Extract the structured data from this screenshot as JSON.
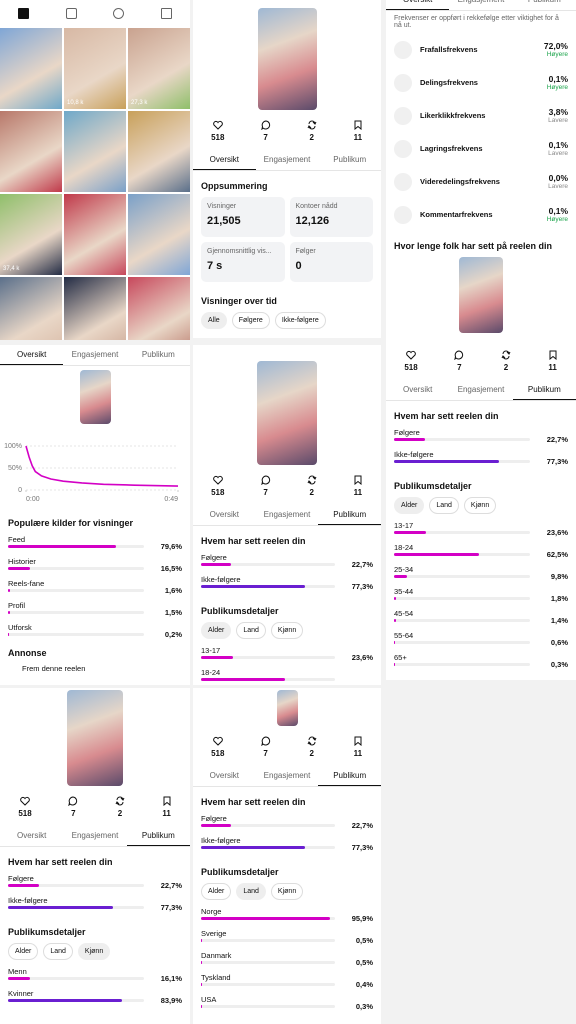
{
  "grid_views": [
    null,
    "10,8 k",
    "27,3 k",
    null,
    null,
    null,
    "37,4 k",
    null,
    null,
    null,
    null,
    null
  ],
  "tabs": [
    "Oversikt",
    "Engasjement",
    "Publikum"
  ],
  "stats": [
    518,
    7,
    2,
    11
  ],
  "summary": {
    "title": "Oppsummering",
    "cards": [
      {
        "label": "Visninger",
        "value": "21,505"
      },
      {
        "label": "Kontoer nådd",
        "value": "12,126"
      },
      {
        "label": "Gjennomsnittlig vis...",
        "value": "7 s"
      },
      {
        "label": "Følger",
        "value": "0"
      }
    ]
  },
  "views_over_time": {
    "title": "Visninger over tid",
    "filters": [
      "Alle",
      "Følgere",
      "Ikke-følgere"
    ]
  },
  "rates": {
    "note": "Frekvenser er oppført i rekkefølge etter viktighet for å nå ut.",
    "items": [
      {
        "name": "Frafallsfrekvens",
        "value": "72,0%",
        "trend": "Høyere"
      },
      {
        "name": "Delingsfrekvens",
        "value": "0,1%",
        "trend": "Høyere"
      },
      {
        "name": "Likerklikkfrekvens",
        "value": "3,8%",
        "trend": "Lavere"
      },
      {
        "name": "Lagringsfrekvens",
        "value": "0,1%",
        "trend": "Lavere"
      },
      {
        "name": "Videredelingsfrekvens",
        "value": "0,0%",
        "trend": "Lavere"
      },
      {
        "name": "Kommentarfrekvens",
        "value": "0,1%",
        "trend": "Høyere"
      }
    ]
  },
  "watch_time_title": "Hvor lenge folk har sett på reelen din",
  "chart_data": {
    "type": "line",
    "x": [
      0,
      1,
      2,
      3,
      5,
      8,
      12,
      18,
      25,
      35,
      49
    ],
    "series": [
      {
        "color": "#d300c5",
        "values": [
          100,
          75,
          55,
          42,
          32,
          25,
          20,
          16,
          13,
          11,
          9
        ]
      }
    ],
    "xlim": [
      0,
      49
    ],
    "ylim": [
      0,
      100
    ],
    "xticks": [
      {
        "value": 0,
        "label": "0:00"
      },
      {
        "value": 49,
        "label": "0:49"
      }
    ],
    "yticks": [
      {
        "value": 100,
        "label": "100%"
      },
      {
        "value": 50,
        "label": "50%"
      },
      0
    ]
  },
  "sources": {
    "title": "Populære kilder for visninger",
    "items": [
      {
        "name": "Feed",
        "value": 79.6,
        "label": "79,6%"
      },
      {
        "name": "Historier",
        "value": 16.5,
        "label": "16,5%"
      },
      {
        "name": "Reels-fane",
        "value": 1.6,
        "label": "1,6%"
      },
      {
        "name": "Profil",
        "value": 1.5,
        "label": "1,5%"
      },
      {
        "name": "Utforsk",
        "value": 0.2,
        "label": "0,2%"
      }
    ]
  },
  "ad": {
    "title": "Annonse",
    "action": "Frem denne reelen"
  },
  "audience": {
    "title": "Hvem har sett reelen din",
    "items": [
      {
        "name": "Følgere",
        "value": 22.7,
        "label": "22,7%",
        "color": "#d300c5"
      },
      {
        "name": "Ikke-følgere",
        "value": 77.3,
        "label": "77,3%",
        "color": "#6a1fd1"
      }
    ]
  },
  "details": {
    "title": "Publikumsdetaljer",
    "filters": [
      "Alder",
      "Land",
      "Kjønn"
    ],
    "age": [
      {
        "name": "13-17",
        "value": 23.6,
        "label": "23,6%"
      },
      {
        "name": "18-24",
        "value": 62.5,
        "label": "62,5%"
      },
      {
        "name": "25-34",
        "value": 9.8,
        "label": "9,8%"
      },
      {
        "name": "35-44",
        "value": 1.8,
        "label": "1,8%"
      },
      {
        "name": "45-54",
        "value": 1.4,
        "label": "1,4%"
      },
      {
        "name": "55-64",
        "value": 0.6,
        "label": "0,6%"
      },
      {
        "name": "65+",
        "value": 0.3,
        "label": "0,3%"
      }
    ],
    "country": [
      {
        "name": "Norge",
        "value": 95.9,
        "label": "95,9%"
      },
      {
        "name": "Sverige",
        "value": 0.5,
        "label": "0,5%"
      },
      {
        "name": "Danmark",
        "value": 0.5,
        "label": "0,5%"
      },
      {
        "name": "Tyskland",
        "value": 0.4,
        "label": "0,4%"
      },
      {
        "name": "USA",
        "value": 0.3,
        "label": "0,3%"
      }
    ],
    "gender": [
      {
        "name": "Menn",
        "value": 16.1,
        "label": "16,1%",
        "color": "#d300c5"
      },
      {
        "name": "Kvinner",
        "value": 83.9,
        "label": "83,9%",
        "color": "#6a1fd1"
      }
    ]
  }
}
